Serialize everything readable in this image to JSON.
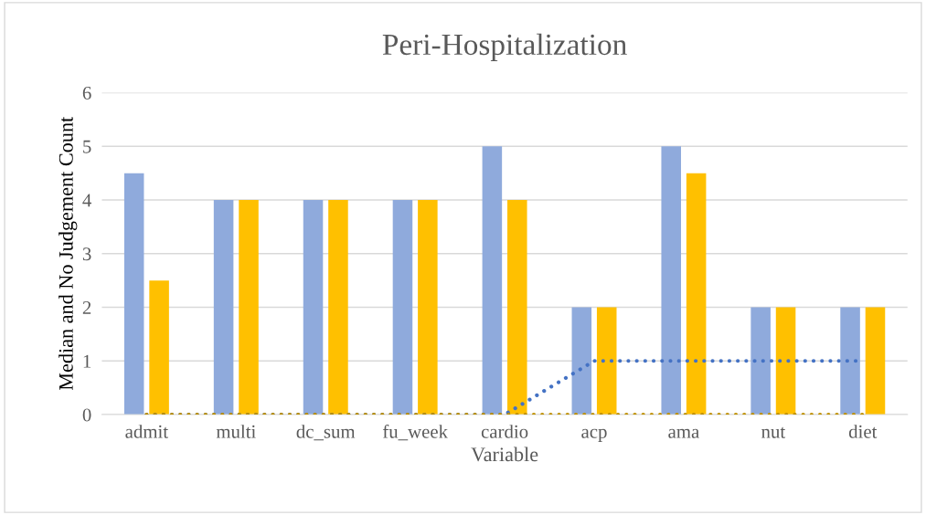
{
  "chart_data": {
    "type": "bar",
    "title": "Peri-Hospitalization",
    "xlabel": "Variable",
    "ylabel": "Median and No Judgement Count",
    "categories": [
      "admit",
      "multi",
      "dc_sum",
      "fu_week",
      "cardio",
      "acp",
      "ama",
      "nut",
      "diet"
    ],
    "series": [
      {
        "color": "#8faadc",
        "values": [
          4.5,
          4,
          4,
          4,
          5,
          2,
          5,
          2,
          2
        ]
      },
      {
        "color": "#ffc000",
        "values": [
          2.5,
          4,
          4,
          4,
          4,
          2,
          4.5,
          2,
          2
        ]
      },
      {
        "type": "line",
        "color": "#4472c4",
        "line_style": "dotted",
        "values": [
          0,
          0,
          0,
          0,
          0,
          1,
          1,
          1,
          1
        ]
      },
      {
        "type": "line",
        "color": "#bf9000",
        "line_style": "dotted",
        "values": [
          0,
          0,
          0,
          0,
          0,
          0,
          0,
          0,
          0
        ]
      }
    ],
    "ylim": [
      0,
      6
    ],
    "yticks": [
      0,
      1,
      2,
      3,
      4,
      5,
      6
    ],
    "grid": "y",
    "legend": false
  }
}
